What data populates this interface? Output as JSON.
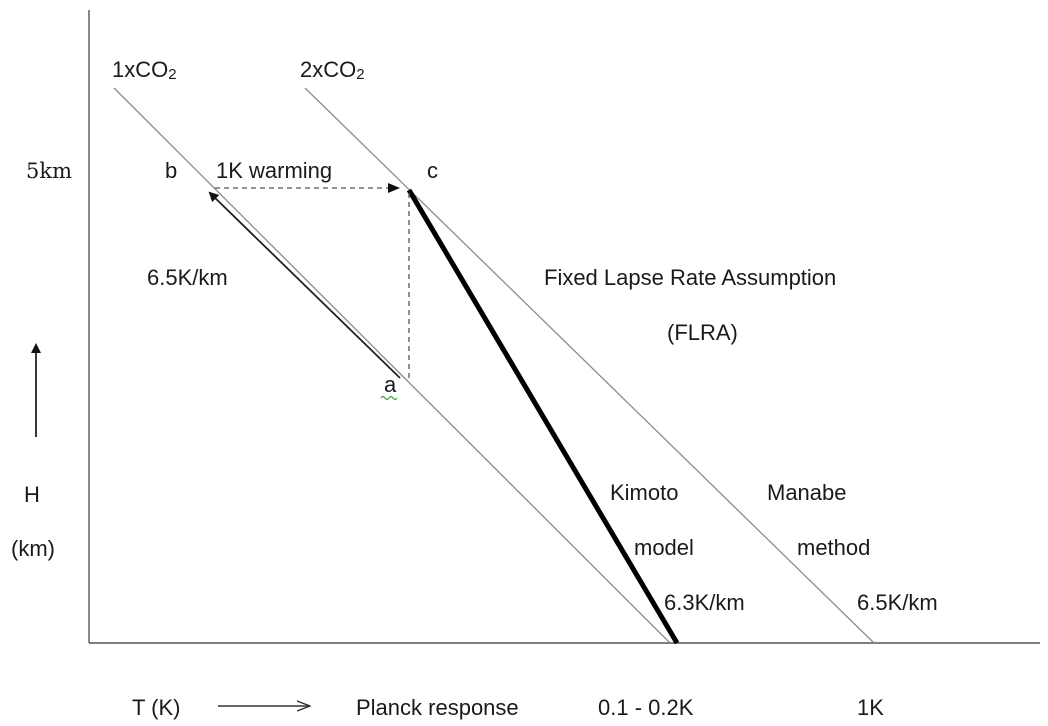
{
  "labels": {
    "line_1x": "1xCO",
    "line_1x_sub": "2",
    "line_2x": "2xCO",
    "line_2x_sub": "2",
    "height_5km": "5km",
    "point_b": "b",
    "point_c": "c",
    "point_a": "a",
    "warming": "1K warming",
    "lapse_left": "6.5K/km",
    "flra_title": "Fixed Lapse Rate Assumption",
    "flra_abbrev": "(FLRA)",
    "y_axis_letter": "H",
    "y_axis_unit": "(km)",
    "kimoto_1": "Kimoto",
    "kimoto_2": "model",
    "kimoto_rate": "6.3K/km",
    "manabe_1": "Manabe",
    "manabe_2": "method",
    "manabe_rate": "6.5K/km",
    "x_axis_label": "T (K)",
    "planck": "Planck response",
    "planck_range": "0.1 - 0.2K",
    "manabe_result": "1K"
  },
  "colors": {
    "thin_line": "#8a8a8a",
    "thick_line": "#000000",
    "axis": "#555555",
    "dashed": "#555555",
    "text": "#1a1a1a"
  }
}
